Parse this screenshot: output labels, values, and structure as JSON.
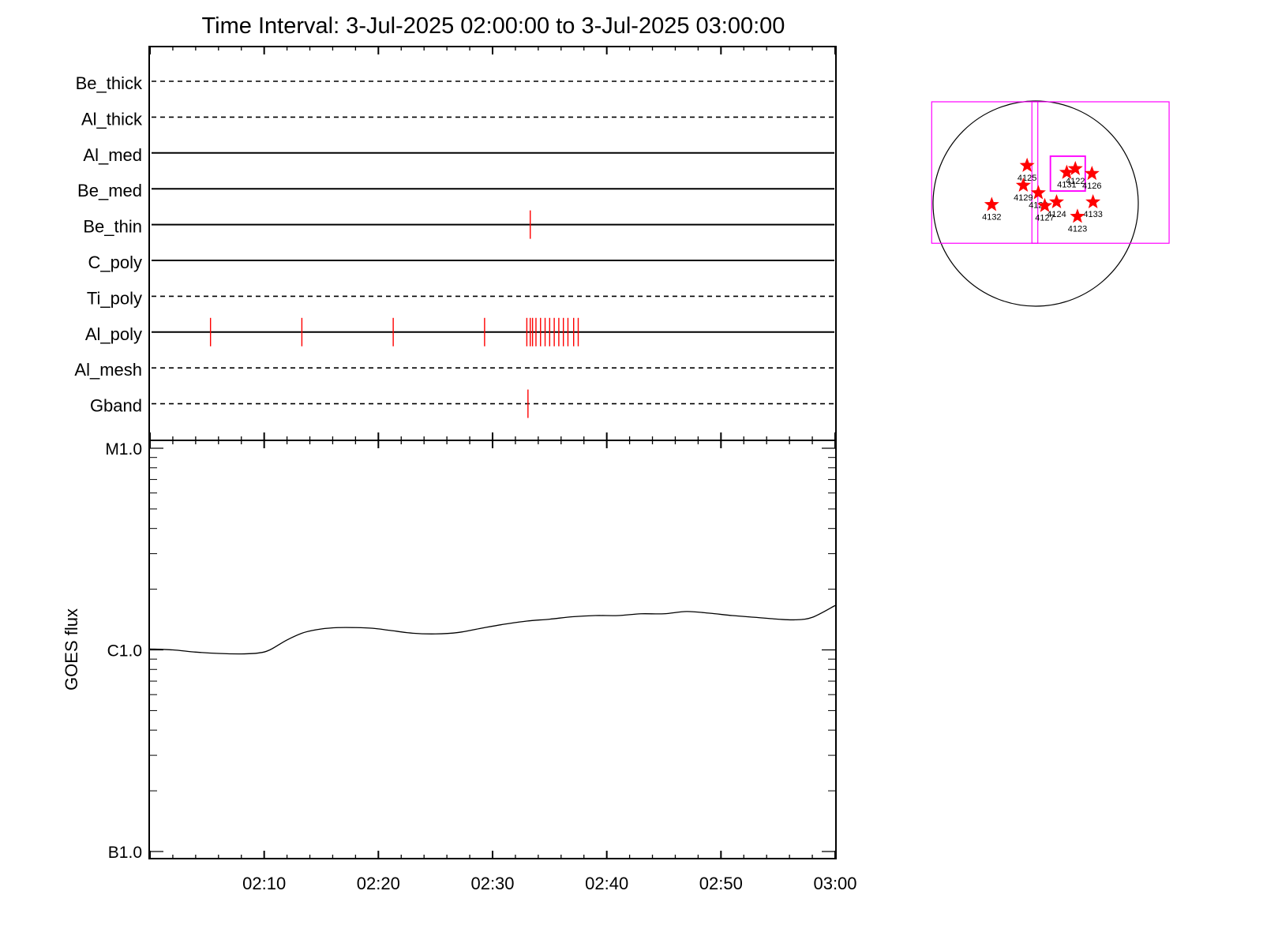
{
  "title": "Time Interval:  3-Jul-2025 02:00:00 to  3-Jul-2025 03:00:00",
  "chart_data": [
    {
      "type": "event-timeline",
      "filters": [
        {
          "label": "Be_thick",
          "line": "dashed",
          "events": []
        },
        {
          "label": "Al_thick",
          "line": "dashed",
          "events": []
        },
        {
          "label": "Al_med",
          "line": "solid",
          "events": []
        },
        {
          "label": "Be_med",
          "line": "solid",
          "events": []
        },
        {
          "label": "Be_thin",
          "line": "solid",
          "events": [
            33.3
          ]
        },
        {
          "label": "C_poly",
          "line": "solid",
          "events": []
        },
        {
          "label": "Ti_poly",
          "line": "dashed",
          "events": []
        },
        {
          "label": "Al_poly",
          "line": "solid",
          "events": [
            5.3,
            13.3,
            21.3,
            29.3,
            33.0,
            33.3,
            33.5,
            33.8,
            34.2,
            34.6,
            35.0,
            35.4,
            35.8,
            36.2,
            36.6,
            37.1,
            37.5
          ]
        },
        {
          "label": "Al_mesh",
          "line": "dashed",
          "events": []
        },
        {
          "label": "Gband",
          "line": "dashed",
          "events": [
            33.1
          ]
        }
      ],
      "x_units": "minutes after 02:00",
      "xlim": [
        0,
        60
      ],
      "event_color": "#ff0000"
    },
    {
      "type": "line",
      "ylabel": "GOES flux",
      "yscale": "log",
      "ylim": [
        1e-07,
        1e-05
      ],
      "yticks": [
        {
          "label": "M1.0",
          "value": 1e-05
        },
        {
          "label": "C1.0",
          "value": 1e-06
        },
        {
          "label": "B1.0",
          "value": 1e-07
        }
      ],
      "xticks": [
        "02:10",
        "02:20",
        "02:30",
        "02:40",
        "02:50",
        "03:00"
      ],
      "xtick_minutes": [
        10,
        20,
        30,
        40,
        50,
        60
      ],
      "xlim": [
        0,
        60
      ],
      "series": [
        {
          "x": [
            0,
            2,
            4,
            6,
            8,
            9.5,
            10.5,
            12,
            13.5,
            15,
            16.5,
            18,
            19.5,
            21,
            23,
            25,
            27,
            29,
            31,
            33,
            35,
            37,
            39,
            41,
            43,
            45,
            47,
            49,
            51,
            53,
            55,
            56.5,
            58,
            60
          ],
          "y": [
            1.01e-06,
            1e-06,
            9.75e-07,
            9.6e-07,
            9.55e-07,
            9.65e-07,
            1e-06,
            1.12e-06,
            1.22e-06,
            1.27e-06,
            1.29e-06,
            1.29e-06,
            1.28e-06,
            1.25e-06,
            1.21e-06,
            1.2e-06,
            1.22e-06,
            1.28e-06,
            1.34e-06,
            1.39e-06,
            1.42e-06,
            1.46e-06,
            1.48e-06,
            1.48e-06,
            1.51e-06,
            1.51e-06,
            1.55e-06,
            1.52e-06,
            1.48e-06,
            1.45e-06,
            1.42e-06,
            1.41e-06,
            1.45e-06,
            1.66e-06
          ],
          "color": "#000000"
        }
      ]
    }
  ],
  "sun_map": {
    "regions": [
      {
        "label": "4125",
        "x": -80,
        "y": 355
      },
      {
        "label": "4122",
        "x": 370,
        "y": 325
      },
      {
        "label": "4131",
        "x": 290,
        "y": 290
      },
      {
        "label": "4126",
        "x": 525,
        "y": 280
      },
      {
        "label": "4129",
        "x": -115,
        "y": 170
      },
      {
        "label": "4128",
        "x": 25,
        "y": 100
      },
      {
        "label": "4127",
        "x": 85,
        "y": -20
      },
      {
        "label": "4124",
        "x": 195,
        "y": 15
      },
      {
        "label": "4132",
        "x": -410,
        "y": -10
      },
      {
        "label": "4133",
        "x": 535,
        "y": 15
      },
      {
        "label": "4123",
        "x": 390,
        "y": -120
      }
    ],
    "fov_boxes": [
      {
        "center": [
          -475,
          290
        ],
        "size": [
          990,
          1320
        ]
      },
      {
        "center": [
          605,
          290
        ],
        "size": [
          1280,
          1320
        ]
      },
      {
        "center": [
          300,
          280
        ],
        "size": [
          330,
          330
        ]
      },
      {
        "center": [
          300,
          280
        ],
        "size": [
          320,
          320
        ]
      }
    ],
    "region_color": "#ff0000",
    "box_color": "#ff00ff"
  }
}
